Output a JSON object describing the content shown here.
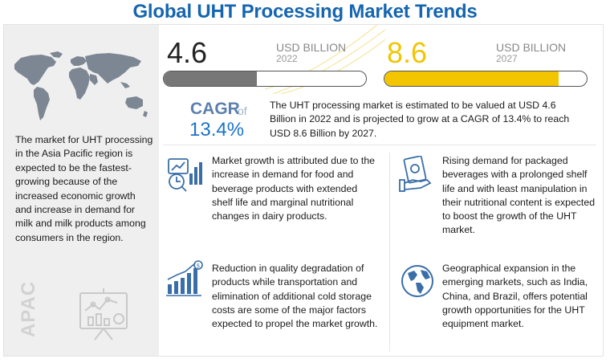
{
  "title": "Global UHT Processing Market Trends",
  "colors": {
    "title": "#1565b0",
    "accent_yellow": "#f2c500",
    "bar_grey": "#777777",
    "cagr_blue": "#1e73c8"
  },
  "region_text": "The market for UHT processing in the Asia Pacific region is expected to be the fastest-growing because of the increased economic growth and increase in demand for milk and milk products among consumers in the region.",
  "region_label": "APAC",
  "value_2022": {
    "number": "4.6",
    "unit": "USD BILLION",
    "year": "2022",
    "bar_fill_fraction": 0.46
  },
  "value_2027": {
    "number": "8.6",
    "unit": "USD BILLION",
    "year": "2027",
    "bar_fill_fraction": 0.86
  },
  "cagr": {
    "label": "CAGR",
    "of": "of",
    "value": "13.4%"
  },
  "summary": "The UHT processing market is estimated to be valued at USD 4.6 Billion in 2022 and is projected to grow at a CAGR of 13.4% to reach USD 8.6 Billion by 2027.",
  "points": [
    {
      "icon": "analysis-chart-icon",
      "text": "Market growth is attributed due to the increase in demand for food and beverage products with extended shelf life and marginal nutritional changes in dairy products."
    },
    {
      "icon": "cash-in-hand-icon",
      "text": "Rising demand for packaged beverages with a prolonged shelf life and with least manipulation in their nutritional content is expected to boost the growth of the UHT market."
    },
    {
      "icon": "growth-bars-dollar-icon",
      "text": "Reduction in quality degradation of products while transportation and elimination of additional cold storage costs are some of the major factors expected to propel the market growth."
    },
    {
      "icon": "globe-icon",
      "text": "Geographical expansion in the emerging markets, such as India, China, and Brazil, offers potential growth opportunities for the UHT equipment market."
    }
  ]
}
